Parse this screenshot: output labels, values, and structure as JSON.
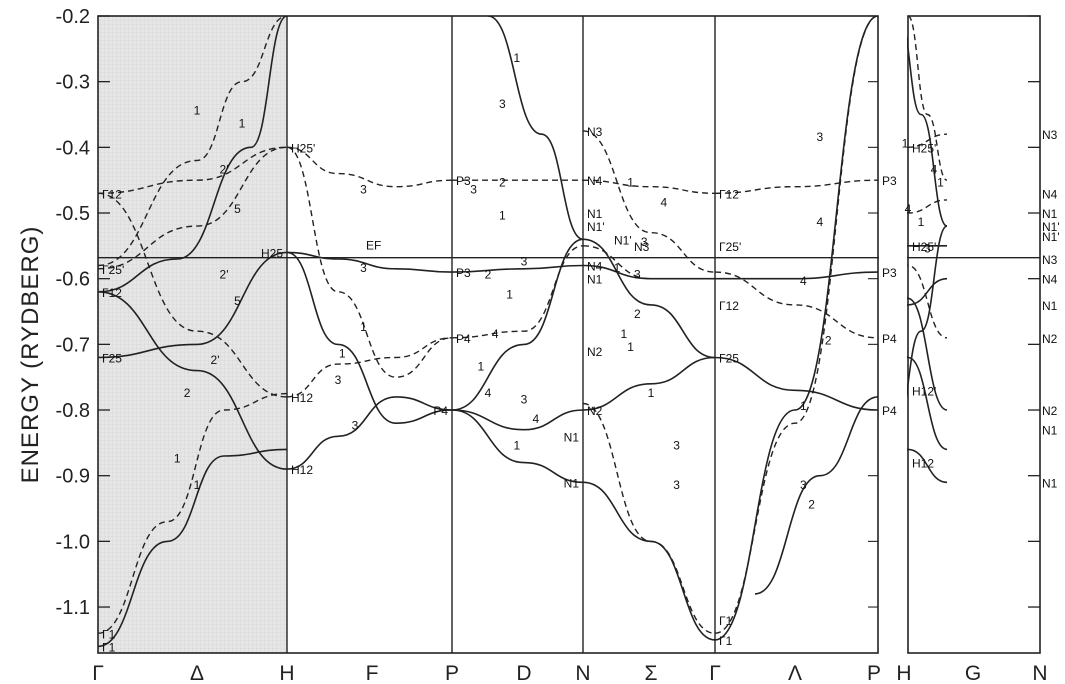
{
  "chart_data": {
    "type": "line",
    "title": "",
    "ylabel": "ENERGY (RYDBERG)",
    "ylim": [
      -1.17,
      -0.2
    ],
    "y_ticks": [
      "-0.2",
      "-0.3",
      "-0.4",
      "-0.5",
      "-0.6",
      "-0.7",
      "-0.8",
      "-0.9",
      "-1.0",
      "-1.1"
    ],
    "y_tick_values": [
      -0.2,
      -0.3,
      -0.4,
      -0.5,
      -0.6,
      -0.7,
      -0.8,
      -0.9,
      -1.0,
      -1.1
    ],
    "fermi_level": {
      "label": "EF",
      "value": -0.568
    },
    "shaded_region": {
      "from": "Γ",
      "to": "H"
    },
    "symmetry_points": [
      "Γ",
      "Δ",
      "H",
      "F",
      "P",
      "D",
      "N",
      "Σ",
      "Γ",
      "Λ",
      "P",
      "H",
      "G",
      "N"
    ],
    "point_labels": [
      "Γ12",
      "Γ25'",
      "Γ12",
      "Γ25",
      "Γ1",
      "Γ1",
      "H25'",
      "H25",
      "H12",
      "H12",
      "P3",
      "P3",
      "P4",
      "P4",
      "N3",
      "N4",
      "N1",
      "N1'",
      "N1'",
      "N3",
      "N4",
      "N1",
      "N2",
      "N2",
      "N1",
      "N1",
      "Γ12",
      "Γ25'",
      "Γ12",
      "Γ25",
      "Γ1",
      "Γ1",
      "P3",
      "P3",
      "P4",
      "P4",
      "H25'",
      "H25'",
      "H12'",
      "H12",
      "N3",
      "N4",
      "N1",
      "N1'",
      "N1'",
      "N3",
      "N4",
      "N1",
      "N2",
      "N2",
      "N1",
      "N1"
    ],
    "band_labels": [
      "1",
      "1",
      "2'",
      "5",
      "2'",
      "5",
      "2'",
      "2",
      "1",
      "1",
      "3",
      "3",
      "1",
      "1",
      "3",
      "3",
      "3",
      "2",
      "1",
      "2",
      "1",
      "4",
      "3",
      "1",
      "4",
      "4",
      "1",
      "3",
      "3",
      "1",
      "1",
      "4",
      "1",
      "3",
      "3",
      "2",
      "1",
      "1",
      "1",
      "3",
      "3",
      "3",
      "4",
      "4",
      "2",
      "1",
      "3",
      "2",
      "1",
      "4",
      "1",
      "3",
      "4",
      "1"
    ],
    "series": [
      {
        "style": "solid",
        "x": [
          0,
          0.7,
          1.3,
          2.0
        ],
        "y": [
          -1.16,
          -1.0,
          -0.87,
          -0.86
        ]
      },
      {
        "style": "dashed",
        "x": [
          0,
          0.7,
          1.3,
          2.0
        ],
        "y": [
          -1.14,
          -0.97,
          -0.8,
          -0.775
        ]
      },
      {
        "style": "solid",
        "x": [
          0,
          0.8,
          1.6,
          2.0
        ],
        "y": [
          -0.62,
          -0.57,
          -0.4,
          -0.2
        ]
      },
      {
        "style": "dashed",
        "x": [
          0,
          1.0,
          1.5,
          2.0
        ],
        "y": [
          -0.58,
          -0.42,
          -0.3,
          -0.2
        ]
      },
      {
        "style": "solid",
        "x": [
          0,
          1.0,
          2.0
        ],
        "y": [
          -0.72,
          -0.7,
          -0.56
        ]
      },
      {
        "style": "solid",
        "x": [
          0,
          1.0,
          2.0
        ],
        "y": [
          -0.62,
          -0.74,
          -0.89
        ]
      },
      {
        "style": "dashed",
        "x": [
          0,
          1.0,
          2.0
        ],
        "y": [
          -0.47,
          -0.68,
          -0.78
        ]
      },
      {
        "style": "dashed",
        "x": [
          0,
          1.0,
          2.0
        ],
        "y": [
          -0.47,
          -0.45,
          -0.4
        ]
      },
      {
        "style": "dashed",
        "x": [
          0,
          1.0,
          2.0
        ],
        "y": [
          -0.585,
          -0.52,
          -0.4
        ]
      },
      {
        "style": "solid",
        "x": [
          2.0,
          2.6,
          3.3,
          4.0
        ],
        "y": [
          -0.56,
          -0.57,
          -0.585,
          -0.59
        ]
      },
      {
        "style": "dashed",
        "x": [
          2.0,
          2.6,
          3.3,
          4.0
        ],
        "y": [
          -0.4,
          -0.44,
          -0.46,
          -0.45
        ]
      },
      {
        "style": "dashed",
        "x": [
          2.0,
          2.6,
          3.3,
          4.0
        ],
        "y": [
          -0.4,
          -0.62,
          -0.75,
          -0.69
        ]
      },
      {
        "style": "solid",
        "x": [
          2.0,
          2.6,
          3.3,
          4.0
        ],
        "y": [
          -0.56,
          -0.7,
          -0.82,
          -0.8
        ]
      },
      {
        "style": "solid",
        "x": [
          2.0,
          2.6,
          3.3,
          4.0
        ],
        "y": [
          -0.89,
          -0.84,
          -0.78,
          -0.8
        ]
      },
      {
        "style": "dashed",
        "x": [
          2.0,
          2.6,
          3.3,
          4.0
        ],
        "y": [
          -0.78,
          -0.73,
          -0.72,
          -0.69
        ]
      },
      {
        "style": "solid",
        "x": [
          4.0,
          5.0,
          6.0
        ],
        "y": [
          -0.59,
          -0.585,
          -0.58
        ]
      },
      {
        "style": "dashed",
        "x": [
          4.0,
          5.0,
          6.0
        ],
        "y": [
          -0.45,
          -0.45,
          -0.45
        ]
      },
      {
        "style": "dashed",
        "x": [
          4.0,
          5.0,
          6.0
        ],
        "y": [
          -0.69,
          -0.68,
          -0.55
        ]
      },
      {
        "style": "solid",
        "x": [
          4.0,
          5.0,
          6.0
        ],
        "y": [
          -0.8,
          -0.7,
          -0.54
        ]
      },
      {
        "style": "solid",
        "x": [
          4.0,
          5.0,
          6.0
        ],
        "y": [
          -0.8,
          -0.83,
          -0.8
        ]
      },
      {
        "style": "solid",
        "x": [
          4.0,
          5.0,
          6.0
        ],
        "y": [
          -0.8,
          -0.88,
          -0.91
        ]
      },
      {
        "style": "solid",
        "x": [
          4.5,
          5.3,
          6.0
        ],
        "y": [
          -0.2,
          -0.38,
          -0.54
        ]
      },
      {
        "style": "solid",
        "x": [
          6.0,
          7.0,
          8.0
        ],
        "y": [
          -0.91,
          -1.0,
          -1.15
        ]
      },
      {
        "style": "dashed",
        "x": [
          6.0,
          7.0,
          8.0
        ],
        "y": [
          -0.79,
          -1.0,
          -1.14
        ]
      },
      {
        "style": "solid",
        "x": [
          6.0,
          7.0,
          8.0
        ],
        "y": [
          -0.8,
          -0.76,
          -0.72
        ]
      },
      {
        "style": "dashed",
        "x": [
          6.0,
          7.0,
          8.0
        ],
        "y": [
          -0.45,
          -0.46,
          -0.47
        ]
      },
      {
        "style": "solid",
        "x": [
          6.0,
          7.0,
          8.0
        ],
        "y": [
          -0.54,
          -0.64,
          -0.72
        ]
      },
      {
        "style": "dashed",
        "x": [
          6.0,
          7.0,
          8.0
        ],
        "y": [
          -0.375,
          -0.53,
          -0.59
        ]
      },
      {
        "style": "solid",
        "x": [
          6.0,
          7.0,
          8.0
        ],
        "y": [
          -0.58,
          -0.6,
          -0.6
        ]
      },
      {
        "style": "dashed",
        "x": [
          6.0,
          7.0,
          8.0
        ],
        "y": [
          -0.55,
          -0.6,
          -0.6
        ]
      },
      {
        "style": "solid",
        "x": [
          8.0,
          9.0,
          10.0
        ],
        "y": [
          -1.15,
          -0.8,
          -0.2
        ]
      },
      {
        "style": "dashed",
        "x": [
          8.0,
          9.0,
          10.0
        ],
        "y": [
          -1.14,
          -0.82,
          -0.2
        ]
      },
      {
        "style": "solid",
        "x": [
          8.0,
          9.0,
          10.0
        ],
        "y": [
          -0.72,
          -0.77,
          -0.8
        ]
      },
      {
        "style": "dashed",
        "x": [
          8.0,
          9.0,
          10.0
        ],
        "y": [
          -0.59,
          -0.64,
          -0.69
        ]
      },
      {
        "style": "solid",
        "x": [
          8.0,
          9.0,
          10.0
        ],
        "y": [
          -0.6,
          -0.6,
          -0.59
        ]
      },
      {
        "style": "dashed",
        "x": [
          8.0,
          9.0,
          10.0
        ],
        "y": [
          -0.47,
          -0.46,
          -0.45
        ]
      },
      {
        "style": "solid",
        "x": [
          8.5,
          9.3,
          10.0
        ],
        "y": [
          -1.08,
          -0.9,
          -0.78
        ]
      },
      {
        "style": "solid",
        "x": [
          10.3,
          11.0,
          11.6
        ],
        "y": [
          -0.56,
          -0.63,
          -0.8
        ]
      },
      {
        "style": "solid",
        "x": [
          10.3,
          11.0,
          11.6
        ],
        "y": [
          -0.89,
          -0.86,
          -0.91
        ]
      },
      {
        "style": "solid",
        "x": [
          10.3,
          11.0,
          11.6
        ],
        "y": [
          -0.56,
          -0.72,
          -0.86
        ]
      },
      {
        "style": "solid",
        "x": [
          10.6,
          11.2,
          11.6
        ],
        "y": [
          -0.83,
          -0.68,
          -0.52
        ]
      },
      {
        "style": "solid",
        "x": [
          10.3,
          11.0,
          11.6
        ],
        "y": [
          -0.56,
          -0.64,
          -0.6
        ]
      },
      {
        "style": "dashed",
        "x": [
          10.3,
          11.0,
          11.6
        ],
        "y": [
          -0.4,
          -0.5,
          -0.48
        ]
      },
      {
        "style": "dashed",
        "x": [
          10.3,
          11.0,
          11.6
        ],
        "y": [
          -0.4,
          -0.4,
          -0.38
        ]
      },
      {
        "style": "dashed",
        "x": [
          10.3,
          11.0,
          11.6
        ],
        "y": [
          -0.56,
          -0.58,
          -0.69
        ]
      },
      {
        "style": "solid",
        "x": [
          10.3,
          11.0,
          11.6
        ],
        "y": [
          -0.56,
          -0.55,
          -0.55
        ]
      },
      {
        "style": "solid",
        "x": [
          10.7,
          11.2,
          11.6
        ],
        "y": [
          -0.2,
          -0.35,
          -0.52
        ]
      },
      {
        "style": "dashed",
        "x": [
          11.0,
          11.3,
          11.6
        ],
        "y": [
          -0.2,
          -0.35,
          -0.45
        ]
      }
    ]
  }
}
